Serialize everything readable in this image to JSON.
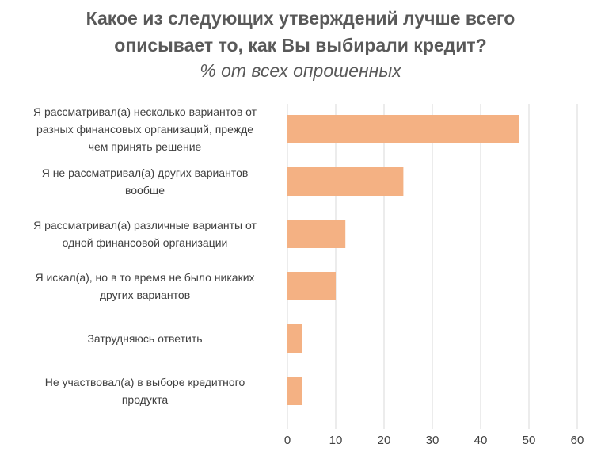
{
  "chart_data": {
    "type": "bar",
    "orientation": "horizontal",
    "title": "Какое из следующих утверждений лучше всего описывает то, как Вы выбирали кредит?",
    "title_lines": [
      "Какое из следующих утверждений лучше всего",
      "описывает то, как Вы выбирали кредит?"
    ],
    "subtitle": "% от всех опрошенных",
    "categories": [
      "Я рассматривал(а) несколько вариантов от разных финансовых организаций, прежде чем принять решение",
      "Я не рассматривал(а) других вариантов вообще",
      "Я рассматривал(а) различные варианты от одной финансовой организации",
      "Я искал(а), но в то время не было никаких других вариантов",
      "Затрудняюсь ответить",
      "Не участвовал(а) в выборе кредитного продукта"
    ],
    "category_lines": [
      [
        "Я рассматривал(а) несколько вариантов от",
        "разных финансовых организаций, прежде",
        "чем принять решение"
      ],
      [
        "Я не рассматривал(а) других вариантов",
        "вообще"
      ],
      [
        "Я рассматривал(а) различные варианты от",
        "одной финансовой организации"
      ],
      [
        "Я искал(а), но в то время не было никаких",
        "других вариантов"
      ],
      [
        "Затрудняюсь ответить"
      ],
      [
        "Не участвовал(а) в выборе кредитного",
        "продукта"
      ]
    ],
    "values": [
      48,
      24,
      12,
      10,
      3,
      3
    ],
    "xlim": [
      0,
      60
    ],
    "xticks": [
      0,
      10,
      20,
      30,
      40,
      50,
      60
    ],
    "grid": true,
    "bar_color": "#F4B183",
    "grid_color": "#D9D9D9",
    "text_color": "#595959"
  }
}
